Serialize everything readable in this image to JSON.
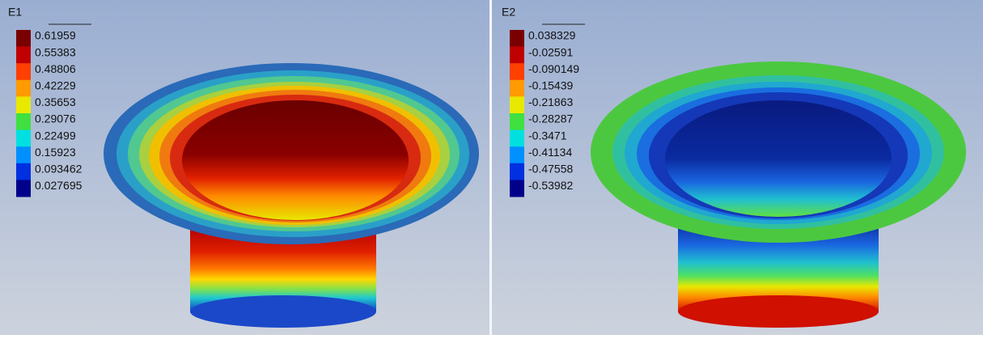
{
  "panels": [
    {
      "title": "E1",
      "legend": [
        "0.61959",
        "0.55383",
        "0.48806",
        "0.42229",
        "0.35653",
        "0.29076",
        "0.22499",
        "0.15923",
        "0.093462",
        "0.027695"
      ]
    },
    {
      "title": "E2",
      "legend": [
        "0.038329",
        "-0.02591",
        "-0.090149",
        "-0.15439",
        "-0.21863",
        "-0.28287",
        "-0.3471",
        "-0.41134",
        "-0.47558",
        "-0.53982"
      ]
    }
  ]
}
